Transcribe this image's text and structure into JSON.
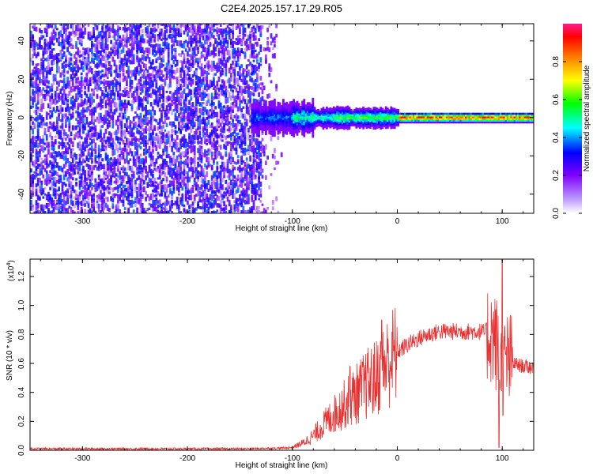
{
  "title": "C2E4.2025.157.17.29.R05",
  "chart_data": [
    {
      "type": "heatmap",
      "xlabel": "Height of straight line (km)",
      "ylabel": "Frequency (Hz)",
      "xlim": [
        -350,
        130
      ],
      "ylim": [
        -50,
        49
      ],
      "xticks": [
        -300,
        -200,
        -100,
        0,
        100
      ],
      "yticks": [
        -40,
        -20,
        0,
        20,
        40
      ],
      "colorbar": {
        "label": "Normalized spectral amplitude",
        "range": [
          0.0,
          1.0
        ],
        "ticks": [
          "0.0",
          "0.2",
          "0.4",
          "0.6",
          "0.8"
        ],
        "colors": [
          "#ffffff",
          "#7f00ff",
          "#0000ff",
          "#00ffff",
          "#00ff00",
          "#ffff00",
          "#ff8000",
          "#ff0000",
          "#ff0080"
        ]
      }
    },
    {
      "type": "line",
      "xlabel": "Height of straight line (km)",
      "ylabel": "SNR (10 * v/v)",
      "ymultiplier": "(x10",
      "ymultiplier_exp": "4",
      "ymultiplier_close": ")",
      "xlim": [
        -350,
        130
      ],
      "ylim": [
        0.0,
        1.32
      ],
      "xticks": [
        -300,
        -200,
        -100,
        0,
        100
      ],
      "yticks": [
        "0.0",
        "0.2",
        "0.4",
        "0.6",
        "0.8",
        "1.0",
        "1.2"
      ],
      "color": "#e83232",
      "envelope": {
        "x": [
          -350,
          -150,
          -110,
          -100,
          -90,
          -80,
          -70,
          -60,
          -50,
          -40,
          -30,
          -20,
          -10,
          0,
          10,
          20,
          30,
          40,
          50,
          60,
          70,
          80,
          90,
          95,
          100,
          105,
          110,
          120,
          130
        ],
        "y": [
          0.01,
          0.01,
          0.015,
          0.02,
          0.05,
          0.1,
          0.18,
          0.25,
          0.32,
          0.38,
          0.45,
          0.5,
          0.6,
          0.68,
          0.73,
          0.77,
          0.8,
          0.82,
          0.82,
          0.82,
          0.82,
          0.82,
          0.8,
          0.72,
          0.55,
          0.62,
          0.6,
          0.58,
          0.57
        ]
      },
      "peaks": [
        {
          "x": -45,
          "y": 0.58
        },
        {
          "x": -15,
          "y": 0.9
        },
        {
          "x": 85,
          "y": 0.88
        },
        {
          "x": 100,
          "y": 1.32
        },
        {
          "x": 97,
          "y": 0.02
        }
      ]
    }
  ]
}
